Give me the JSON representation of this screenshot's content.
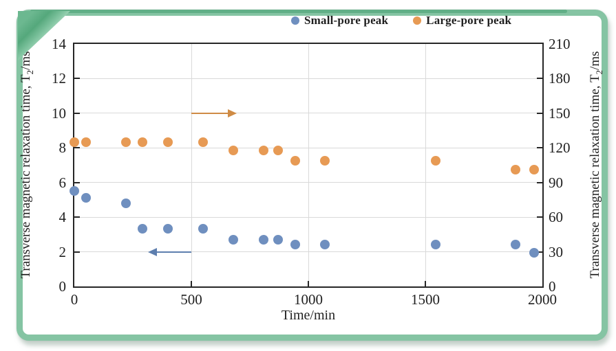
{
  "figure": {
    "frame_color": "#85c4a3",
    "frame_top_accent_color": "#55a87d",
    "background_color": "#ffffff",
    "axis_line_color": "#262626",
    "gridline_color": "#d9d9d9",
    "text_color": "#1f1f1f"
  },
  "legend": {
    "items": [
      {
        "label": "Small-pore peak",
        "color": "#6f8fbf"
      },
      {
        "label": "Large-pore peak",
        "color": "#e79a54"
      }
    ]
  },
  "chart_data": {
    "type": "scatter",
    "title": "",
    "xlabel": "Time/min",
    "ylabel_left": "Transverse magnetic relaxation time, T2/ms",
    "ylabel_right": "Transverse magnetic relaxation time, T2/ms",
    "ylabel_parts": {
      "prefix": "Transverse magnetic relaxation time, T",
      "sub": "2",
      "suffix": "/ms"
    },
    "xlim": [
      0,
      2000
    ],
    "xticks": [
      0,
      500,
      1000,
      1500,
      2000
    ],
    "ylim_left": [
      0,
      14
    ],
    "yticks_left": [
      0,
      2,
      4,
      6,
      8,
      10,
      12,
      14
    ],
    "ylim_right": [
      0,
      210
    ],
    "yticks_right": [
      0,
      30,
      60,
      90,
      120,
      150,
      180,
      210
    ],
    "grid": true,
    "legend_position": "top-right",
    "x": [
      0,
      50,
      220,
      290,
      400,
      550,
      680,
      810,
      870,
      945,
      1070,
      1545,
      1885,
      1965
    ],
    "series": [
      {
        "name": "Small-pore peak",
        "axis": "left",
        "color": "#6f8fbf",
        "values": [
          5.5,
          5.1,
          4.8,
          3.35,
          3.35,
          3.35,
          2.7,
          2.7,
          2.7,
          2.4,
          2.4,
          2.4,
          2.4,
          1.95
        ]
      },
      {
        "name": "Large-pore peak",
        "axis": "right",
        "color": "#e79a54",
        "values": [
          125,
          125,
          125,
          125,
          125,
          125,
          118,
          118,
          118,
          109,
          109,
          109,
          101,
          101
        ]
      }
    ],
    "annotations": [
      {
        "type": "arrow",
        "series": "Large-pore peak",
        "direction": "right",
        "color": "#cf8b45",
        "axis": "left",
        "y": 10,
        "x_tail": 500,
        "x_tip": 695
      },
      {
        "type": "arrow",
        "series": "Small-pore peak",
        "direction": "left",
        "color": "#5d7eae",
        "axis": "left",
        "y": 2,
        "x_tail": 500,
        "x_tip": 315
      }
    ]
  }
}
